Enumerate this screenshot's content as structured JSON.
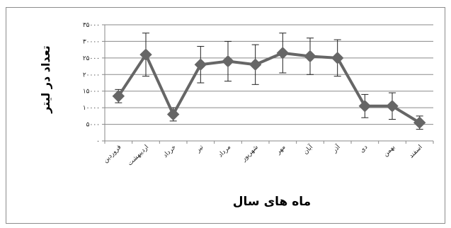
{
  "chart_data": {
    "type": "line",
    "title": "",
    "xlabel": "ماه های سال",
    "ylabel": "تعداد در لیتر",
    "ylim": [
      0,
      35000
    ],
    "ytick_values": [
      0,
      5000,
      10000,
      15000,
      20000,
      25000,
      30000,
      35000
    ],
    "ytick_labels": [
      "۰",
      "۵۰۰۰",
      "۱۰۰۰۰",
      "۱۵۰۰۰",
      "۲۰۰۰۰",
      "۲۵۰۰۰",
      "۳۰۰۰۰",
      "۳۵۰۰۰"
    ],
    "grid": true,
    "legend": "none",
    "categories": [
      "فروردین",
      "اردیبهشت",
      "خرداد",
      "تیر",
      "مرداد",
      "شهریور",
      "مهر",
      "آبان",
      "آذر",
      "دی",
      "بهمن",
      "اسفند"
    ],
    "series": [
      {
        "values": [
          13500,
          26000,
          8000,
          23000,
          24000,
          23000,
          26500,
          25500,
          25000,
          10500,
          10500,
          5500
        ],
        "error": [
          2000,
          6500,
          2000,
          5500,
          6000,
          6000,
          6000,
          5500,
          5500,
          3500,
          4000,
          2000
        ],
        "color": "#666666",
        "marker": "diamond"
      }
    ]
  }
}
